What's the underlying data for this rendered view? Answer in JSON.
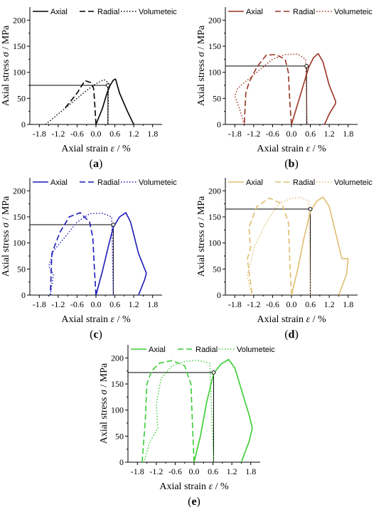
{
  "chart_data": [
    {
      "type": "line",
      "label": "a",
      "color": "#000000",
      "xlabel_prefix": "Axial strain ",
      "xlabel_symbol": "ε",
      "xlabel_unit": " / %",
      "ylabel_prefix": "Axial stress ",
      "ylabel_symbol": "σ",
      "ylabel_unit": " / MPa",
      "xlim": [
        -2.1,
        2.1
      ],
      "ylim": [
        0,
        225
      ],
      "xticks": [
        -1.8,
        -1.2,
        -0.6,
        0.0,
        0.6,
        1.2,
        1.8
      ],
      "xtick_labels": [
        "-1.8",
        "-1.2",
        "-0.6",
        "0.0",
        "0.6",
        "1.2",
        "1.8"
      ],
      "yticks": [
        0,
        50,
        100,
        150,
        200
      ],
      "ytick_labels": [
        "0",
        "50",
        "100",
        "150",
        "200"
      ],
      "legend": [
        "Axial",
        "Radial",
        "Volumeteic"
      ],
      "marker": {
        "x": 0.38,
        "y": 75
      },
      "series": [
        {
          "name": "Axial",
          "style": "solid",
          "x": [
            0.0,
            0.2,
            0.35,
            0.45,
            0.55,
            0.62,
            0.75,
            1.0,
            1.2
          ],
          "y": [
            0,
            30,
            60,
            75,
            85,
            87,
            60,
            25,
            0
          ]
        },
        {
          "name": "Radial",
          "style": "dash",
          "x": [
            0.0,
            -0.02,
            -0.05,
            -0.08,
            -0.15,
            -0.35,
            -0.6,
            -1.0
          ],
          "y": [
            0,
            20,
            50,
            70,
            80,
            84,
            60,
            30
          ]
        },
        {
          "name": "Volumeteic",
          "style": "dot",
          "x": [
            -1.6,
            -1.4,
            -1.2,
            -0.9,
            -0.6,
            -0.3,
            0.0,
            0.25,
            0.4,
            0.38
          ],
          "y": [
            0,
            10,
            20,
            35,
            50,
            65,
            78,
            86,
            80,
            0
          ]
        }
      ]
    },
    {
      "type": "line",
      "label": "b",
      "color": "#993322",
      "xlabel_prefix": "Axial strain ",
      "xlabel_symbol": "ε",
      "xlabel_unit": " / %",
      "ylabel_prefix": "Axial stress ",
      "ylabel_symbol": "σ",
      "ylabel_unit": " / MPa",
      "xlim": [
        -2.1,
        2.1
      ],
      "ylim": [
        0,
        225
      ],
      "xticks": [
        -1.8,
        -1.2,
        -0.6,
        0.0,
        0.6,
        1.2,
        1.8
      ],
      "xtick_labels": [
        "-1.8",
        "-1.2",
        "-0.6",
        "0.0",
        "0.6",
        "1.2",
        "1.8"
      ],
      "yticks": [
        0,
        50,
        100,
        150,
        200
      ],
      "ytick_labels": [
        "0",
        "50",
        "100",
        "150",
        "200"
      ],
      "legend": [
        "Axial",
        "Radial",
        "Volumeteic"
      ],
      "marker": {
        "x": 0.48,
        "y": 112
      },
      "series": [
        {
          "name": "Axial",
          "style": "solid",
          "x": [
            0.0,
            0.2,
            0.4,
            0.55,
            0.7,
            0.85,
            1.0,
            1.2,
            1.4,
            1.4,
            1.2,
            1.05
          ],
          "y": [
            0,
            40,
            80,
            110,
            128,
            136,
            120,
            75,
            45,
            40,
            20,
            0
          ]
        },
        {
          "name": "Radial",
          "style": "dash",
          "x": [
            0.0,
            -0.05,
            -0.1,
            -0.2,
            -0.5,
            -0.8,
            -1.1,
            -1.35,
            -1.45,
            -1.5
          ],
          "y": [
            0,
            40,
            100,
            125,
            134,
            133,
            110,
            80,
            60,
            0
          ]
        },
        {
          "name": "Volumeteic",
          "style": "dot",
          "x": [
            -1.5,
            -1.65,
            -1.8,
            -1.7,
            -1.4,
            -1.0,
            -0.6,
            -0.2,
            0.2,
            0.45,
            0.5
          ],
          "y": [
            0,
            30,
            55,
            70,
            85,
            105,
            125,
            134,
            135,
            125,
            0
          ]
        }
      ]
    },
    {
      "type": "line",
      "label": "c",
      "color": "#1a1ab8",
      "xlabel_prefix": "Axial strain ",
      "xlabel_symbol": "ε",
      "xlabel_unit": " / %",
      "ylabel_prefix": "Axial stress ",
      "ylabel_symbol": "σ",
      "ylabel_unit": " / MPa",
      "xlim": [
        -2.1,
        2.1
      ],
      "ylim": [
        0,
        225
      ],
      "xticks": [
        -1.8,
        -1.2,
        -0.6,
        0.0,
        0.6,
        1.2,
        1.8
      ],
      "xtick_labels": [
        "-1.8",
        "-1.2",
        "-0.6",
        "0.0",
        "0.6",
        "1.2",
        "1.8"
      ],
      "yticks": [
        0,
        50,
        100,
        150,
        200
      ],
      "ytick_labels": [
        "0",
        "50",
        "100",
        "150",
        "200"
      ],
      "legend": [
        "Axial",
        "Radial",
        "Volumeteic"
      ],
      "marker": {
        "x": 0.55,
        "y": 135
      },
      "series": [
        {
          "name": "Axial",
          "style": "solid",
          "x": [
            0.0,
            0.2,
            0.4,
            0.55,
            0.75,
            0.95,
            1.1,
            1.35,
            1.6,
            1.55,
            1.35
          ],
          "y": [
            0,
            45,
            95,
            130,
            150,
            158,
            140,
            80,
            42,
            30,
            0
          ]
        },
        {
          "name": "Radial",
          "style": "dash",
          "x": [
            0.0,
            -0.05,
            -0.1,
            -0.2,
            -0.5,
            -0.85,
            -1.15,
            -1.4,
            -1.45
          ],
          "y": [
            0,
            50,
            110,
            140,
            158,
            150,
            120,
            80,
            0
          ]
        },
        {
          "name": "Volumeteic",
          "style": "dot",
          "x": [
            -1.45,
            -1.4,
            -1.35,
            -1.5,
            -1.35,
            -1.0,
            -0.6,
            -0.2,
            0.2,
            0.5,
            0.55
          ],
          "y": [
            0,
            20,
            40,
            55,
            85,
            110,
            140,
            156,
            157,
            150,
            0
          ]
        }
      ]
    },
    {
      "type": "line",
      "label": "d",
      "color": "#e0be70",
      "xlabel_prefix": "Axial strain ",
      "xlabel_symbol": "ε",
      "xlabel_unit": " / %",
      "ylabel_prefix": "Axial stress ",
      "ylabel_symbol": "σ",
      "ylabel_unit": " / MPa",
      "xlim": [
        -2.1,
        2.1
      ],
      "ylim": [
        0,
        225
      ],
      "xticks": [
        -1.8,
        -1.2,
        -0.6,
        0.0,
        0.6,
        1.2,
        1.8
      ],
      "xtick_labels": [
        "-1.8",
        "-1.2",
        "-0.6",
        "0.0",
        "0.6",
        "1.2",
        "1.8"
      ],
      "yticks": [
        0,
        50,
        100,
        150,
        200
      ],
      "ytick_labels": [
        "0",
        "50",
        "100",
        "150",
        "200"
      ],
      "legend": [
        "Axial",
        "Radial",
        "Volumeteic"
      ],
      "marker": {
        "x": 0.6,
        "y": 165
      },
      "series": [
        {
          "name": "Axial",
          "style": "solid",
          "x": [
            0.0,
            0.2,
            0.4,
            0.6,
            0.8,
            1.0,
            1.2,
            1.4,
            1.6,
            1.8,
            1.75,
            1.5
          ],
          "y": [
            0,
            50,
            110,
            160,
            180,
            188,
            170,
            120,
            70,
            70,
            40,
            0
          ]
        },
        {
          "name": "Radial",
          "style": "dash",
          "x": [
            0.0,
            -0.05,
            -0.1,
            -0.3,
            -0.7,
            -1.1,
            -1.35,
            -1.3,
            -1.4,
            -1.25
          ],
          "y": [
            0,
            60,
            140,
            175,
            186,
            170,
            130,
            90,
            70,
            0
          ]
        },
        {
          "name": "Volumeteic",
          "style": "dot",
          "x": [
            -1.25,
            -1.35,
            -1.4,
            -1.3,
            -1.2,
            -0.8,
            -0.4,
            0.0,
            0.3,
            0.55,
            0.6
          ],
          "y": [
            0,
            20,
            40,
            60,
            90,
            140,
            175,
            186,
            187,
            180,
            0
          ]
        }
      ]
    },
    {
      "type": "line",
      "label": "e",
      "color": "#39cc33",
      "xlabel_prefix": "Axial strain ",
      "xlabel_symbol": "ε",
      "xlabel_unit": " / %",
      "ylabel_prefix": "Axial stress ",
      "ylabel_symbol": "σ",
      "ylabel_unit": " / MPa",
      "xlim": [
        -2.1,
        2.1
      ],
      "ylim": [
        0,
        225
      ],
      "xticks": [
        -1.8,
        -1.2,
        -0.6,
        0.0,
        0.6,
        1.2,
        1.8
      ],
      "xtick_labels": [
        "-1.8",
        "-1.2",
        "-0.6",
        "0.0",
        "0.6",
        "1.2",
        "1.8"
      ],
      "yticks": [
        0,
        50,
        100,
        150,
        200
      ],
      "ytick_labels": [
        "0",
        "50",
        "100",
        "150",
        "200"
      ],
      "legend": [
        "Axial",
        "Radial",
        "Volumeteic"
      ],
      "marker": {
        "x": 0.62,
        "y": 172
      },
      "series": [
        {
          "name": "Axial",
          "style": "solid",
          "x": [
            0.0,
            0.2,
            0.4,
            0.62,
            0.85,
            1.1,
            1.3,
            1.55,
            1.75,
            1.85,
            1.75,
            1.5
          ],
          "y": [
            0,
            50,
            115,
            170,
            188,
            197,
            180,
            130,
            90,
            65,
            40,
            0
          ]
        },
        {
          "name": "Radial",
          "style": "dash",
          "x": [
            0.0,
            -0.05,
            -0.1,
            -0.3,
            -0.7,
            -1.1,
            -1.35,
            -1.5,
            -1.55,
            -1.65
          ],
          "y": [
            0,
            70,
            150,
            185,
            195,
            190,
            175,
            150,
            80,
            0
          ]
        },
        {
          "name": "Volumeteic",
          "style": "dot",
          "x": [
            -1.6,
            -1.5,
            -1.4,
            -1.25,
            -1.15,
            -1.2,
            -1.05,
            -0.7,
            -0.3,
            0.1,
            0.5,
            0.62
          ],
          "y": [
            0,
            20,
            40,
            55,
            65,
            110,
            160,
            185,
            193,
            196,
            190,
            0
          ]
        }
      ]
    }
  ]
}
